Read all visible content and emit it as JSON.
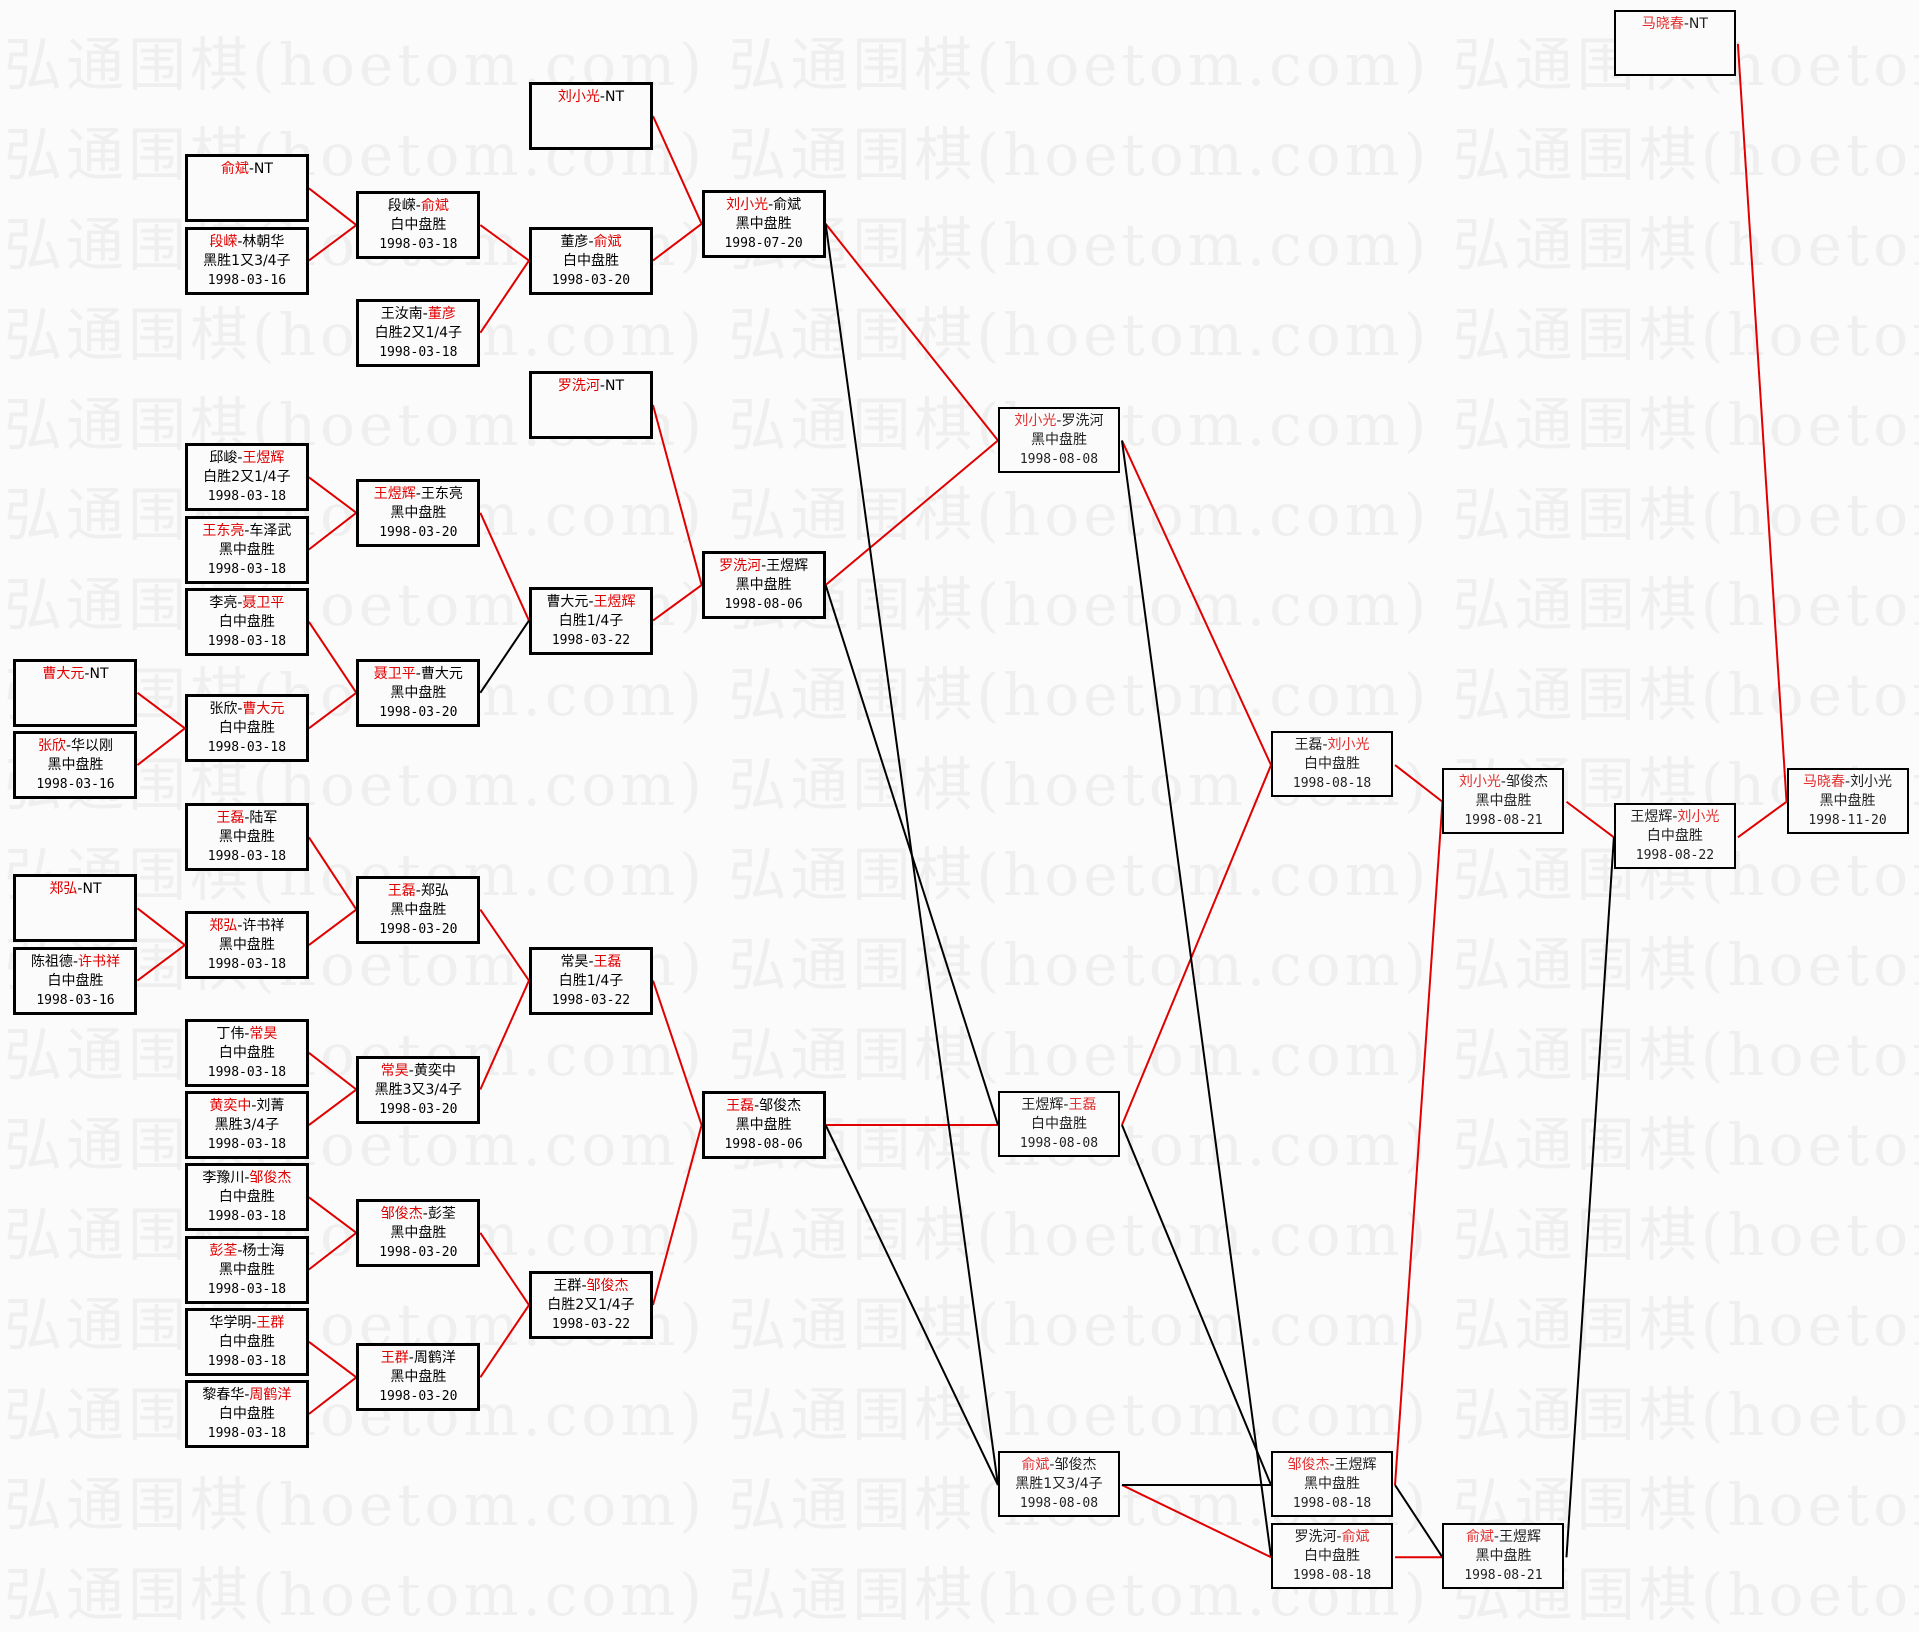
{
  "watermark": "弘通围棋(hoetom.com)",
  "colors": {
    "winner": "#e00000",
    "loser_line": "#000000",
    "winner_line": "#e00000",
    "border": "#000000"
  },
  "boxes": [
    {
      "players": [
        "曹大元",
        "NT"
      ],
      "winner": 0,
      "result": "",
      "date": ""
    },
    {
      "players": [
        "张欣",
        "华以刚"
      ],
      "winner": 0,
      "result": "黑中盘胜",
      "date": "1998-03-16"
    },
    {
      "players": [
        "郑弘",
        "NT"
      ],
      "winner": 0,
      "result": "",
      "date": ""
    },
    {
      "players": [
        "陈祖德",
        "许书祥"
      ],
      "winner": 1,
      "result": "白中盘胜",
      "date": "1998-03-16"
    },
    {
      "players": [
        "俞斌",
        "NT"
      ],
      "winner": 0,
      "result": "",
      "date": ""
    },
    {
      "players": [
        "段嵘",
        "林朝华"
      ],
      "winner": 0,
      "result": "黑胜1又3/4子",
      "date": "1998-03-16"
    },
    {
      "players": [
        "邱峻",
        "王煜辉"
      ],
      "winner": 1,
      "result": "白胜2又1/4子",
      "date": "1998-03-18"
    },
    {
      "players": [
        "王东亮",
        "车泽武"
      ],
      "winner": 0,
      "result": "黑中盘胜",
      "date": "1998-03-18"
    },
    {
      "players": [
        "李亮",
        "聂卫平"
      ],
      "winner": 1,
      "result": "白中盘胜",
      "date": "1998-03-18"
    },
    {
      "players": [
        "张欣",
        "曹大元"
      ],
      "winner": 1,
      "result": "白中盘胜",
      "date": "1998-03-18"
    },
    {
      "players": [
        "王磊",
        "陆军"
      ],
      "winner": 0,
      "result": "黑中盘胜",
      "date": "1998-03-18"
    },
    {
      "players": [
        "郑弘",
        "许书祥"
      ],
      "winner": 0,
      "result": "黑中盘胜",
      "date": "1998-03-18"
    },
    {
      "players": [
        "丁伟",
        "常昊"
      ],
      "winner": 1,
      "result": "白中盘胜",
      "date": "1998-03-18"
    },
    {
      "players": [
        "黄奕中",
        "刘菁"
      ],
      "winner": 0,
      "result": "黑胜3/4子",
      "date": "1998-03-18"
    },
    {
      "players": [
        "李豫川",
        "邹俊杰"
      ],
      "winner": 1,
      "result": "白中盘胜",
      "date": "1998-03-18"
    },
    {
      "players": [
        "彭荃",
        "杨士海"
      ],
      "winner": 0,
      "result": "黑中盘胜",
      "date": "1998-03-18"
    },
    {
      "players": [
        "华学明",
        "王群"
      ],
      "winner": 1,
      "result": "白中盘胜",
      "date": "1998-03-18"
    },
    {
      "players": [
        "黎春华",
        "周鹤洋"
      ],
      "winner": 1,
      "result": "白中盘胜",
      "date": "1998-03-18"
    },
    {
      "players": [
        "段嵘",
        "俞斌"
      ],
      "winner": 1,
      "result": "白中盘胜",
      "date": "1998-03-18"
    },
    {
      "players": [
        "王汝南",
        "董彦"
      ],
      "winner": 1,
      "result": "白胜2又1/4子",
      "date": "1998-03-18"
    },
    {
      "players": [
        "王煜辉",
        "王东亮"
      ],
      "winner": 0,
      "result": "黑中盘胜",
      "date": "1998-03-20"
    },
    {
      "players": [
        "聂卫平",
        "曹大元"
      ],
      "winner": 0,
      "result": "黑中盘胜",
      "date": "1998-03-20"
    },
    {
      "players": [
        "王磊",
        "郑弘"
      ],
      "winner": 0,
      "result": "黑中盘胜",
      "date": "1998-03-20"
    },
    {
      "players": [
        "常昊",
        "黄奕中"
      ],
      "winner": 0,
      "result": "黑胜3又3/4子",
      "date": "1998-03-20"
    },
    {
      "players": [
        "邹俊杰",
        "彭荃"
      ],
      "winner": 0,
      "result": "黑中盘胜",
      "date": "1998-03-20"
    },
    {
      "players": [
        "王群",
        "周鹤洋"
      ],
      "winner": 0,
      "result": "黑中盘胜",
      "date": "1998-03-20"
    },
    {
      "players": [
        "刘小光",
        "NT"
      ],
      "winner": 0,
      "result": "",
      "date": ""
    },
    {
      "players": [
        "董彦",
        "俞斌"
      ],
      "winner": 1,
      "result": "白中盘胜",
      "date": "1998-03-20"
    },
    {
      "players": [
        "罗洗河",
        "NT"
      ],
      "winner": 0,
      "result": "",
      "date": ""
    },
    {
      "players": [
        "曹大元",
        "王煜辉"
      ],
      "winner": 1,
      "result": "白胜1/4子",
      "date": "1998-03-22"
    },
    {
      "players": [
        "常昊",
        "王磊"
      ],
      "winner": 1,
      "result": "白胜1/4子",
      "date": "1998-03-22"
    },
    {
      "players": [
        "王群",
        "邹俊杰"
      ],
      "winner": 1,
      "result": "白胜2又1/4子",
      "date": "1998-03-22"
    },
    {
      "players": [
        "刘小光",
        "俞斌"
      ],
      "winner": 0,
      "result": "黑中盘胜",
      "date": "1998-07-20"
    },
    {
      "players": [
        "罗洗河",
        "王煜辉"
      ],
      "winner": 0,
      "result": "黑中盘胜",
      "date": "1998-08-06"
    },
    {
      "players": [
        "王磊",
        "邹俊杰"
      ],
      "winner": 0,
      "result": "黑中盘胜",
      "date": "1998-08-06"
    },
    {
      "players": [
        "刘小光",
        "罗洗河"
      ],
      "winner": 0,
      "result": "黑中盘胜",
      "date": "1998-08-08"
    },
    {
      "players": [
        "王煜辉",
        "王磊"
      ],
      "winner": 1,
      "result": "白中盘胜",
      "date": "1998-08-08"
    },
    {
      "players": [
        "俞斌",
        "邹俊杰"
      ],
      "winner": 0,
      "result": "黑胜1又3/4子",
      "date": "1998-08-08"
    },
    {
      "players": [
        "王磊",
        "刘小光"
      ],
      "winner": 1,
      "result": "白中盘胜",
      "date": "1998-08-18"
    },
    {
      "players": [
        "邹俊杰",
        "王煜辉"
      ],
      "winner": 0,
      "result": "黑中盘胜",
      "date": "1998-08-18"
    },
    {
      "players": [
        "罗洗河",
        "俞斌"
      ],
      "winner": 1,
      "result": "白中盘胜",
      "date": "1998-08-18"
    },
    {
      "players": [
        "刘小光",
        "邹俊杰"
      ],
      "winner": 0,
      "result": "黑中盘胜",
      "date": "1998-08-21"
    },
    {
      "players": [
        "俞斌",
        "王煜辉"
      ],
      "winner": 0,
      "result": "黑中盘胜",
      "date": "1998-08-21"
    },
    {
      "players": [
        "王煜辉",
        "刘小光"
      ],
      "winner": 1,
      "result": "白中盘胜",
      "date": "1998-08-22"
    },
    {
      "players": [
        "马晓春",
        "NT"
      ],
      "winner": 0,
      "result": "",
      "date": ""
    },
    {
      "players": [
        "马晓春",
        "刘小光"
      ],
      "winner": 0,
      "result": "黑中盘胜",
      "date": "1998-11-20"
    }
  ],
  "connections": [
    {
      "from": 4,
      "to": 18,
      "won": true
    },
    {
      "from": 5,
      "to": 18,
      "won": true
    },
    {
      "from": 18,
      "to": 27,
      "won": true
    },
    {
      "from": 19,
      "to": 27,
      "won": true
    },
    {
      "from": 26,
      "to": 32,
      "won": true
    },
    {
      "from": 27,
      "to": 32,
      "won": true
    },
    {
      "from": 6,
      "to": 20,
      "won": true
    },
    {
      "from": 7,
      "to": 20,
      "won": true
    },
    {
      "from": 8,
      "to": 21,
      "won": true
    },
    {
      "from": 9,
      "to": 21,
      "won": true
    },
    {
      "from": 0,
      "to": 9,
      "won": true
    },
    {
      "from": 1,
      "to": 9,
      "won": true
    },
    {
      "from": 20,
      "to": 29,
      "won": true
    },
    {
      "from": 21,
      "to": 29,
      "won": false
    },
    {
      "from": 28,
      "to": 33,
      "won": true
    },
    {
      "from": 29,
      "to": 33,
      "won": true
    },
    {
      "from": 32,
      "to": 35,
      "won": true
    },
    {
      "from": 33,
      "to": 35,
      "won": true
    },
    {
      "from": 10,
      "to": 22,
      "won": true
    },
    {
      "from": 11,
      "to": 22,
      "won": true
    },
    {
      "from": 2,
      "to": 11,
      "won": true
    },
    {
      "from": 3,
      "to": 11,
      "won": true
    },
    {
      "from": 12,
      "to": 23,
      "won": true
    },
    {
      "from": 13,
      "to": 23,
      "won": true
    },
    {
      "from": 22,
      "to": 30,
      "won": true
    },
    {
      "from": 23,
      "to": 30,
      "won": true
    },
    {
      "from": 14,
      "to": 24,
      "won": true
    },
    {
      "from": 15,
      "to": 24,
      "won": true
    },
    {
      "from": 16,
      "to": 25,
      "won": true
    },
    {
      "from": 17,
      "to": 25,
      "won": true
    },
    {
      "from": 24,
      "to": 31,
      "won": true
    },
    {
      "from": 25,
      "to": 31,
      "won": true
    },
    {
      "from": 30,
      "to": 34,
      "won": true
    },
    {
      "from": 31,
      "to": 34,
      "won": true
    },
    {
      "from": 34,
      "to": 36,
      "won": true
    },
    {
      "from": 33,
      "to": 36,
      "won": false
    },
    {
      "from": 32,
      "to": 37,
      "won": false
    },
    {
      "from": 34,
      "to": 37,
      "won": false
    },
    {
      "from": 35,
      "to": 38,
      "won": true
    },
    {
      "from": 36,
      "to": 38,
      "won": true
    },
    {
      "from": 35,
      "to": 40,
      "won": false
    },
    {
      "from": 37,
      "to": 40,
      "won": true
    },
    {
      "from": 36,
      "to": 39,
      "won": false
    },
    {
      "from": 37,
      "to": 39,
      "won": false
    },
    {
      "from": 38,
      "to": 41,
      "won": true
    },
    {
      "from": 39,
      "to": 41,
      "won": true
    },
    {
      "from": 39,
      "to": 42,
      "won": false
    },
    {
      "from": 40,
      "to": 42,
      "won": true
    },
    {
      "from": 41,
      "to": 43,
      "won": true
    },
    {
      "from": 42,
      "to": 43,
      "won": false
    },
    {
      "from": 44,
      "to": 45,
      "won": true
    },
    {
      "from": 43,
      "to": 45,
      "won": true
    }
  ]
}
